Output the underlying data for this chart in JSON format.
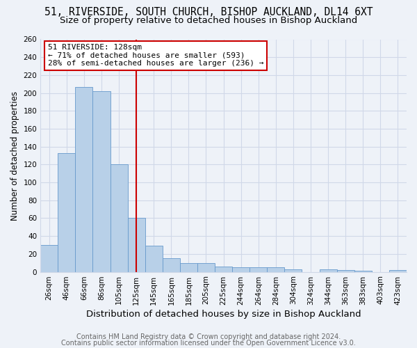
{
  "title": "51, RIVERSIDE, SOUTH CHURCH, BISHOP AUCKLAND, DL14 6XT",
  "subtitle": "Size of property relative to detached houses in Bishop Auckland",
  "xlabel": "Distribution of detached houses by size in Bishop Auckland",
  "ylabel": "Number of detached properties",
  "bar_labels": [
    "26sqm",
    "46sqm",
    "66sqm",
    "86sqm",
    "105sqm",
    "125sqm",
    "145sqm",
    "165sqm",
    "185sqm",
    "205sqm",
    "225sqm",
    "244sqm",
    "264sqm",
    "284sqm",
    "304sqm",
    "324sqm",
    "344sqm",
    "363sqm",
    "383sqm",
    "403sqm",
    "423sqm"
  ],
  "bar_values": [
    30,
    133,
    207,
    202,
    120,
    60,
    29,
    15,
    10,
    10,
    6,
    5,
    5,
    5,
    3,
    0,
    3,
    2,
    1,
    0,
    2
  ],
  "bar_color": "#b8d0e8",
  "bar_edge_color": "#6699cc",
  "vline_x_idx": 5,
  "vline_color": "#cc0000",
  "ylim": [
    0,
    260
  ],
  "yticks": [
    0,
    20,
    40,
    60,
    80,
    100,
    120,
    140,
    160,
    180,
    200,
    220,
    240,
    260
  ],
  "annotation_title": "51 RIVERSIDE: 128sqm",
  "annotation_line1": "← 71% of detached houses are smaller (593)",
  "annotation_line2": "28% of semi-detached houses are larger (236) →",
  "annotation_box_color": "#ffffff",
  "annotation_box_edge": "#cc0000",
  "footer1": "Contains HM Land Registry data © Crown copyright and database right 2024.",
  "footer2": "Contains public sector information licensed under the Open Government Licence v3.0.",
  "title_fontsize": 10.5,
  "subtitle_fontsize": 9.5,
  "xlabel_fontsize": 9.5,
  "ylabel_fontsize": 8.5,
  "tick_fontsize": 7.5,
  "annot_fontsize": 8,
  "footer_fontsize": 7,
  "bg_color": "#eef2f8",
  "grid_color": "#d0d8e8"
}
